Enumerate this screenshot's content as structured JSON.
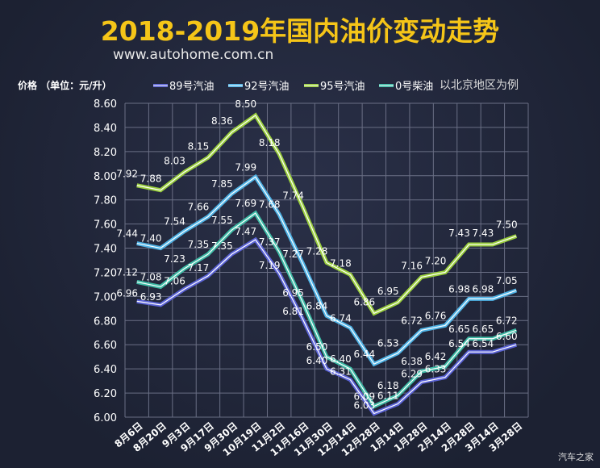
{
  "title": "2018-2019年国内油价变动走势",
  "url": "www.autohome.com.cn",
  "footer": "汽车之家",
  "chart_data": {
    "type": "line",
    "title": "2018-2019年国内油价变动走势",
    "ylabel": "价格 （单位：元/升）",
    "note": "以北京地区为例",
    "categories": [
      "8月6日",
      "8月20日",
      "9月3日",
      "9月17日",
      "9月30日",
      "10月19日",
      "11月2日",
      "11月16日",
      "11月30日",
      "12月14日",
      "12月28日",
      "1月14日",
      "1月28日",
      "2月14日",
      "2月28日",
      "3月14日",
      "3月28日"
    ],
    "ylim": [
      6.0,
      8.6
    ],
    "yticks": [
      "6.00",
      "6.20",
      "6.40",
      "6.60",
      "6.80",
      "7.00",
      "7.20",
      "7.40",
      "7.60",
      "7.80",
      "8.00",
      "8.20",
      "8.40",
      "8.60"
    ],
    "grid": true,
    "legend": "top",
    "series": [
      {
        "name": "89号汽油",
        "color": "#5b63d6",
        "values": [
          6.96,
          6.93,
          7.06,
          7.17,
          7.35,
          7.47,
          7.19,
          6.81,
          6.4,
          6.31,
          6.03,
          6.11,
          6.29,
          6.33,
          6.54,
          6.54,
          6.6
        ]
      },
      {
        "name": "92号汽油",
        "color": "#4fb3e6",
        "values": [
          7.44,
          7.4,
          7.54,
          7.66,
          7.85,
          7.99,
          7.68,
          7.27,
          6.84,
          6.74,
          6.44,
          6.53,
          6.72,
          6.76,
          6.98,
          6.98,
          7.05
        ]
      },
      {
        "name": "95号汽油",
        "color": "#9bcf3e",
        "values": [
          7.92,
          7.88,
          8.03,
          8.15,
          8.36,
          8.5,
          8.18,
          7.74,
          7.28,
          7.18,
          6.86,
          6.95,
          7.16,
          7.2,
          7.43,
          7.43,
          7.5
        ]
      },
      {
        "name": "0号柴油",
        "color": "#3dbba6",
        "values": [
          7.12,
          7.08,
          7.23,
          7.35,
          7.55,
          7.69,
          7.37,
          6.95,
          6.5,
          6.4,
          6.09,
          6.18,
          6.38,
          6.42,
          6.65,
          6.65,
          6.72
        ]
      }
    ]
  }
}
